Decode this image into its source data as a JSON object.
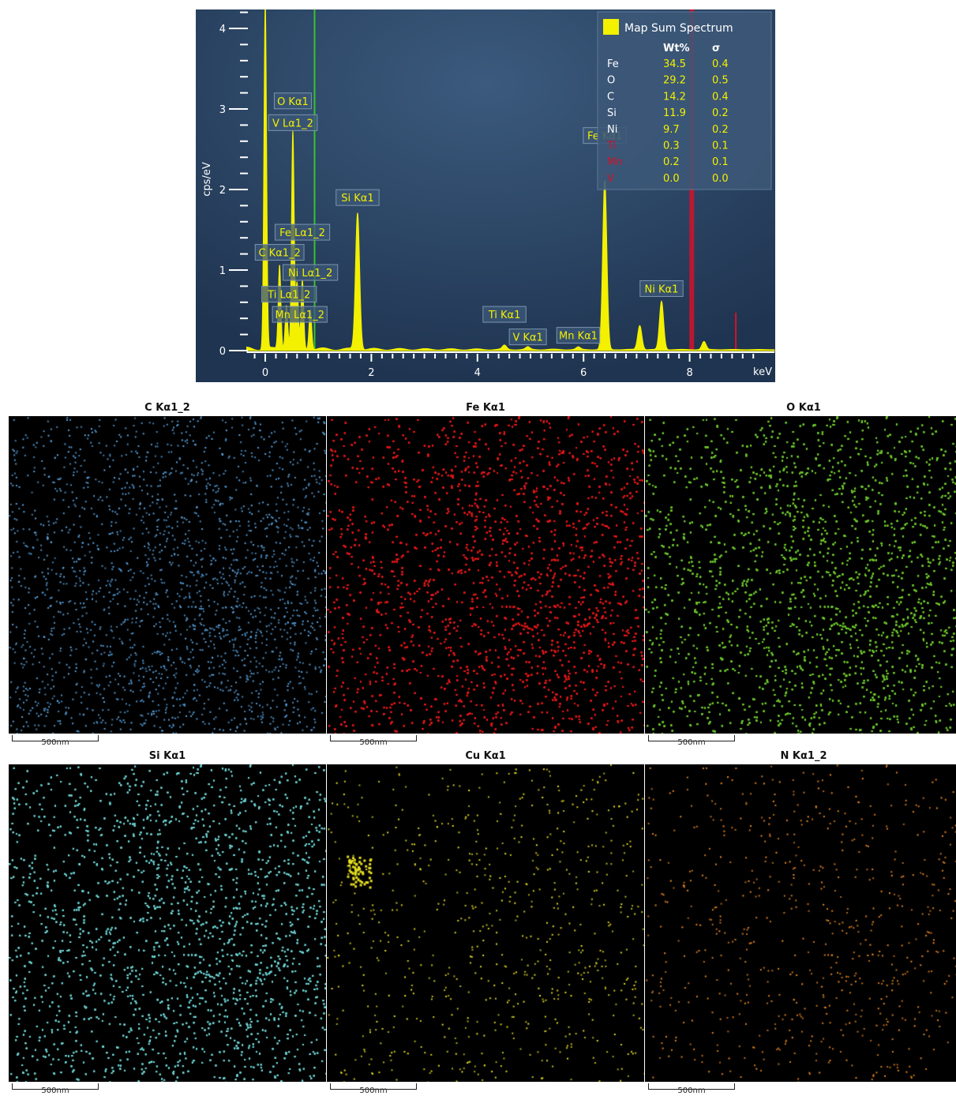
{
  "chart_data": [
    {
      "type": "line",
      "xlabel": "keV",
      "ylabel": "cps/eV",
      "xlim": [
        -0.35,
        9.6
      ],
      "ylim": [
        -0.1,
        4.3
      ],
      "xticks": [
        "0",
        "2",
        "4",
        "6",
        "8"
      ],
      "yticks": [
        "0",
        "1",
        "2",
        "3",
        "4"
      ],
      "peaks": [
        {
          "x": 0.0,
          "y": 4.3
        },
        {
          "x": 0.27,
          "y": 1.05
        },
        {
          "x": 0.4,
          "y": 0.55
        },
        {
          "x": 0.52,
          "y": 2.7
        },
        {
          "x": 0.6,
          "y": 0.8
        },
        {
          "x": 0.7,
          "y": 0.85
        },
        {
          "x": 0.85,
          "y": 0.5
        },
        {
          "x": 1.74,
          "y": 1.7
        },
        {
          "x": 4.51,
          "y": 0.05
        },
        {
          "x": 4.95,
          "y": 0.03
        },
        {
          "x": 5.9,
          "y": 0.03
        },
        {
          "x": 6.4,
          "y": 2.1
        },
        {
          "x": 7.06,
          "y": 0.3
        },
        {
          "x": 7.47,
          "y": 0.6
        },
        {
          "x": 8.27,
          "y": 0.1
        }
      ],
      "peak_labels": [
        {
          "text": "O Kα1",
          "x": 0.52,
          "y": 3.1
        },
        {
          "text": "V Lα1_2",
          "x": 0.52,
          "y": 2.83
        },
        {
          "text": "Si Kα1",
          "x": 1.74,
          "y": 1.9
        },
        {
          "text": "Fe Lα1_2",
          "x": 0.7,
          "y": 1.47
        },
        {
          "text": "C Kα1_2",
          "x": 0.27,
          "y": 1.22
        },
        {
          "text": "Ni Lα1_2",
          "x": 0.85,
          "y": 0.97
        },
        {
          "text": "Ti Lα1_2",
          "x": 0.45,
          "y": 0.7
        },
        {
          "text": "Mn Lα1_2",
          "x": 0.65,
          "y": 0.45
        },
        {
          "text": "Ti Kα1",
          "x": 4.51,
          "y": 0.45
        },
        {
          "text": "V Kα1",
          "x": 4.95,
          "y": 0.17
        },
        {
          "text": "Mn Kα1",
          "x": 5.9,
          "y": 0.19
        },
        {
          "text": "Fe Kα1",
          "x": 6.4,
          "y": 2.67
        },
        {
          "text": "Ni Kα1",
          "x": 7.47,
          "y": 0.77
        }
      ],
      "markers": [
        {
          "x": 0.93,
          "color": "#39c22f"
        },
        {
          "x": 8.04,
          "color": "#d3122a"
        },
        {
          "x": 8.87,
          "color": "#d3122a"
        }
      ],
      "legend": {
        "title": "Map Sum Spectrum",
        "columns": [
          "Wt%",
          "σ"
        ],
        "rows": [
          {
            "element": "Fe",
            "wt": "34.5",
            "sigma": "0.4",
            "color": "#ffffff"
          },
          {
            "element": "O",
            "wt": "29.2",
            "sigma": "0.5",
            "color": "#ffffff"
          },
          {
            "element": "C",
            "wt": "14.2",
            "sigma": "0.4",
            "color": "#ffffff"
          },
          {
            "element": "Si",
            "wt": "11.9",
            "sigma": "0.2",
            "color": "#ffffff"
          },
          {
            "element": "Ni",
            "wt": "9.7",
            "sigma": "0.2",
            "color": "#ffffff"
          },
          {
            "element": "Ti",
            "wt": "0.3",
            "sigma": "0.1",
            "color": "#d3122a"
          },
          {
            "element": "Mn",
            "wt": "0.2",
            "sigma": "0.1",
            "color": "#d3122a"
          },
          {
            "element": "V",
            "wt": "0.0",
            "sigma": "0.0",
            "color": "#d3122a"
          }
        ]
      },
      "colors": {
        "background": "#263f5e",
        "spectrum": "#f3f000",
        "legend_value": "#f3f000"
      }
    },
    {
      "type": "heatmap",
      "maps": [
        {
          "title": "C Kα1_2",
          "color": "#5aa8e8",
          "scale": "500nm",
          "density": 0.45
        },
        {
          "title": "Fe Kα1",
          "color": "#e01818",
          "scale": "500nm",
          "density": 2.4
        },
        {
          "title": "O Kα1",
          "color": "#6cc82c",
          "scale": "500nm",
          "density": 2.0
        },
        {
          "title": "Si Kα1",
          "color": "#6fd6d6",
          "scale": "500nm",
          "density": 1.4
        },
        {
          "title": "Cu Kα1",
          "color": "#e8e020",
          "scale": "500nm",
          "density": 0.15
        },
        {
          "title": "N Kα1_2",
          "color": "#ee8a22",
          "scale": "500nm",
          "density": 0.14
        }
      ]
    }
  ]
}
